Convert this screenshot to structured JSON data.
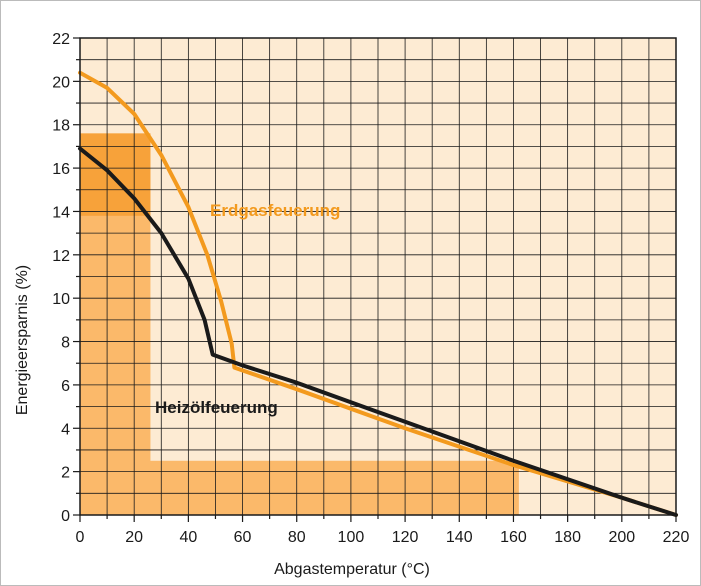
{
  "chart_data": {
    "type": "line",
    "xlabel": "Abgastemperatur (°C)",
    "ylabel": "Energieersparnis (%)",
    "xlim": [
      0,
      220
    ],
    "ylim": [
      0,
      22
    ],
    "x_ticks": [
      "0",
      "20",
      "40",
      "60",
      "80",
      "100",
      "120",
      "140",
      "160",
      "180",
      "200",
      "220"
    ],
    "y_ticks": [
      "0",
      "2",
      "4",
      "6",
      "8",
      "10",
      "12",
      "14",
      "16",
      "18",
      "20",
      "22"
    ],
    "grid": true,
    "background_color": "#fdebd3",
    "series": [
      {
        "name": "Erdgasfeuerung",
        "color": "#f39a1e",
        "x": [
          0,
          10,
          20,
          30,
          40,
          47,
          52,
          56,
          57,
          80,
          120,
          160,
          200,
          220
        ],
        "y": [
          20.4,
          19.7,
          18.5,
          16.6,
          14.2,
          12.0,
          9.9,
          7.9,
          6.8,
          5.8,
          4.0,
          2.3,
          0.8,
          0.0
        ]
      },
      {
        "name": "Heizölfeuerung",
        "color": "#1a1a1a",
        "x": [
          0,
          10,
          20,
          30,
          40,
          46,
          49,
          60,
          80,
          120,
          160,
          200,
          220
        ],
        "y": [
          16.9,
          15.9,
          14.6,
          13.0,
          10.9,
          9.0,
          7.4,
          6.9,
          6.1,
          4.3,
          2.5,
          0.8,
          0.0
        ]
      }
    ],
    "shaded_regions": [
      {
        "x": [
          0,
          26
        ],
        "y": [
          0,
          17.6
        ],
        "color": "#fbb96a"
      },
      {
        "x": [
          0,
          162
        ],
        "y": [
          0,
          2.5
        ],
        "color": "#fbb96a"
      },
      {
        "x": [
          0,
          26
        ],
        "y": [
          13.8,
          17.6
        ],
        "color": "#f7a23a"
      }
    ]
  }
}
